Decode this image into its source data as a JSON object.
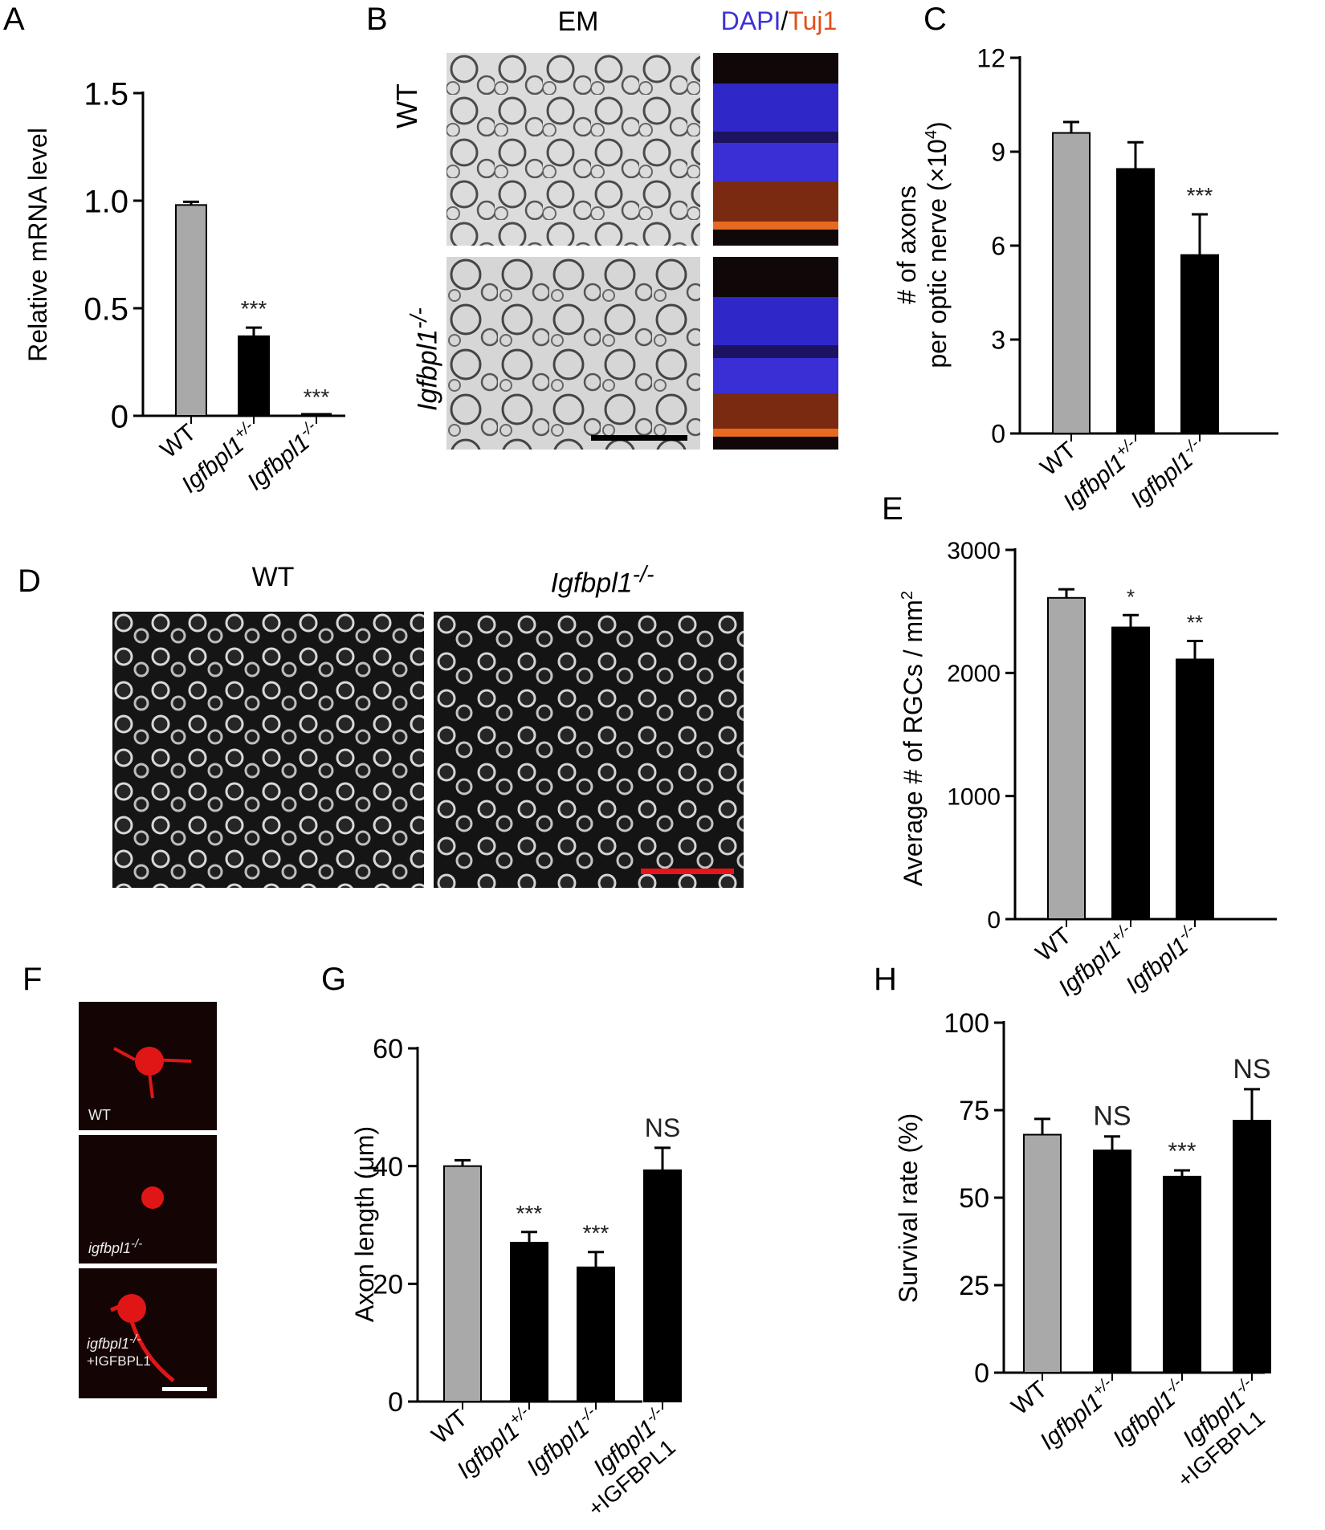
{
  "figure": {
    "panel_letters": [
      "A",
      "B",
      "C",
      "D",
      "E",
      "F",
      "G",
      "H"
    ],
    "panel_b": {
      "em_label": "EM",
      "dapi_label": "DAPI",
      "slash": "/",
      "tuj1_label": "Tuj1",
      "row_labels": [
        "WT",
        "Igfbpl1"
      ],
      "row_sup": "-/-"
    },
    "panel_d": {
      "col_labels": [
        "WT",
        "Igfbpl1"
      ],
      "col_sup": "-/-"
    },
    "panel_f": {
      "labels": [
        "WT",
        "igfbpl1",
        "igfbpl1",
        "+IGFBPL1"
      ],
      "sup": "-/-"
    },
    "colors": {
      "wt_bar": "#a9a9a9",
      "mutant_bar": "#000000",
      "dapi": "#3b32d6",
      "tuj1": "#e0501a",
      "scale_red": "#e8141c"
    }
  },
  "chart_data": [
    {
      "id": "A",
      "type": "bar",
      "categories": [
        "WT",
        "Igfbpl1+/-",
        "Igfbpl1-/-"
      ],
      "values": [
        0.98,
        0.37,
        0.0
      ],
      "errors": [
        0.015,
        0.04,
        0.0
      ],
      "significance": [
        "",
        "***",
        "***"
      ],
      "ylabel": "Relative mRNA level",
      "ylim": [
        0,
        1.5
      ],
      "yticks": [
        "0",
        "0.5",
        "1.0",
        "1.5"
      ]
    },
    {
      "id": "C",
      "type": "bar",
      "categories": [
        "WT",
        "Igfbpl1+/-",
        "Igfbpl1-/-"
      ],
      "values": [
        9.6,
        8.45,
        5.7
      ],
      "errors": [
        0.35,
        0.85,
        1.3
      ],
      "significance": [
        "",
        "",
        "***"
      ],
      "ylabel_line1": "# of axons",
      "ylabel_line2": "per optic nerve (×10",
      "ylabel_sup": "4",
      "ylabel_close": ")",
      "ylim": [
        0,
        12
      ],
      "yticks": [
        "0",
        "3",
        "6",
        "9",
        "12"
      ]
    },
    {
      "id": "E",
      "type": "bar",
      "categories": [
        "WT",
        "Igfbpl1+/-",
        "Igfbpl1-/-"
      ],
      "values": [
        2610,
        2370,
        2110
      ],
      "errors": [
        70,
        100,
        150
      ],
      "significance": [
        "",
        "*",
        "**"
      ],
      "ylabel": "Average  # of RGCs / mm",
      "ylabel_sup": "2",
      "ylim": [
        0,
        3000
      ],
      "yticks": [
        "0",
        "1000",
        "2000",
        "3000"
      ]
    },
    {
      "id": "G",
      "type": "bar",
      "categories": [
        "WT",
        "Igfbpl1+/-",
        "Igfbpl1-/-",
        "Igfbpl1-/- +IGFBPL1"
      ],
      "values": [
        40,
        27,
        22.8,
        39.3
      ],
      "errors": [
        1.0,
        1.8,
        2.6,
        3.8
      ],
      "significance": [
        "",
        "***",
        "***",
        "NS"
      ],
      "ylabel": "Axon length (μm)",
      "ylim": [
        0,
        60
      ],
      "yticks": [
        "0",
        "20",
        "40",
        "60"
      ]
    },
    {
      "id": "H",
      "type": "bar",
      "categories": [
        "WT",
        "Igfbpl1+/-",
        "Igfbpl1-/-",
        "Igfbpl1-/- +IGFBPL1"
      ],
      "values": [
        68,
        63.5,
        56,
        72
      ],
      "errors": [
        4.5,
        4,
        1.8,
        9
      ],
      "significance": [
        "",
        "NS",
        "***",
        "NS"
      ],
      "ylabel": "Survival  rate (%)",
      "ylim": [
        0,
        100
      ],
      "yticks": [
        "0",
        "25",
        "50",
        "75",
        "100"
      ]
    }
  ]
}
